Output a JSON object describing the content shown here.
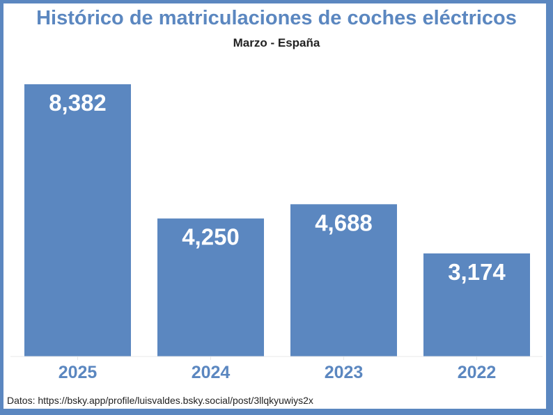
{
  "colors": {
    "bar": "#5b87c0",
    "title": "#5b87c0",
    "label": "#ffffff",
    "axis_text": "#5b87c0",
    "border": "#5b87c0"
  },
  "chart_data": {
    "type": "bar",
    "title": "Histórico de matriculaciones de coches eléctricos",
    "subtitle": "Marzo - España",
    "categories": [
      "2025",
      "2024",
      "2023",
      "2022"
    ],
    "values": [
      8382,
      4250,
      4688,
      3174
    ],
    "value_labels": [
      "8,382",
      "4,250",
      "4,688",
      "3,174"
    ],
    "xlabel": "",
    "ylabel": "",
    "ylim": [
      0,
      8382
    ],
    "grid": false,
    "legend": "none"
  },
  "footer": {
    "source": "Datos: https://bsky.app/profile/luisvaldes.bsky.social/post/3llqkyuwiys2x"
  }
}
